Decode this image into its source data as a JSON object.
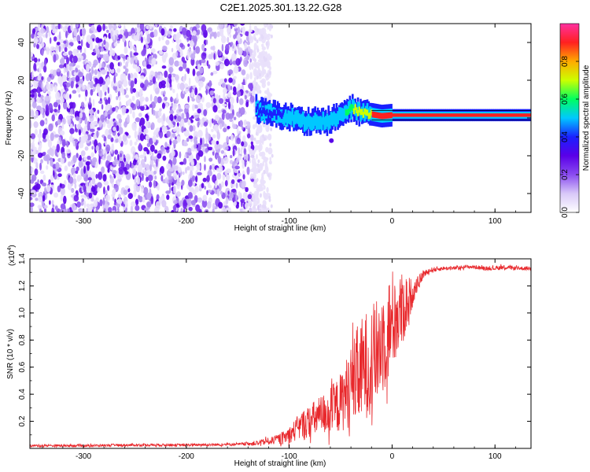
{
  "title": "C2E1.2025.301.13.22.G28",
  "chart_data": [
    {
      "type": "heatmap",
      "xlabel": "Height of straight line (km)",
      "ylabel": "Frequency (Hz)",
      "xlim": [
        -352,
        135
      ],
      "ylim": [
        -50,
        50
      ],
      "xticks": [
        -300,
        -200,
        -100,
        0,
        100
      ],
      "xtick_labels": [
        "-300",
        "-200",
        "-100",
        "0",
        "100"
      ],
      "yticks": [
        -40,
        -20,
        0,
        20,
        40
      ],
      "ytick_labels": [
        "-40",
        "-20",
        "0",
        "20",
        "40"
      ],
      "noise_region_x": [
        -352,
        -130
      ],
      "signal_ridge": {
        "x": [
          -132,
          -125,
          -115,
          -105,
          -95,
          -85,
          -75,
          -65,
          -55,
          -45,
          -38,
          -30,
          -20,
          -10,
          0,
          10,
          20,
          40,
          60,
          80,
          100,
          120,
          135
        ],
        "y_hz": [
          5,
          3,
          2,
          1,
          0,
          -2,
          -1,
          -2,
          0,
          3,
          5,
          3,
          2,
          1,
          1.5,
          1.5,
          1.5,
          1.5,
          1.5,
          1.5,
          1.5,
          1.5,
          1.5
        ],
        "amp": [
          0.45,
          0.5,
          0.45,
          0.5,
          0.5,
          0.55,
          0.5,
          0.5,
          0.55,
          0.6,
          0.7,
          0.8,
          0.85,
          0.85,
          0.9,
          0.9,
          0.95,
          0.95,
          0.95,
          0.95,
          0.95,
          0.95,
          0.95
        ]
      },
      "colorbar": {
        "label": "Normalized spectral amplitude",
        "range": [
          0,
          1
        ],
        "ticks": [
          0.0,
          0.2,
          0.4,
          0.6,
          0.8
        ],
        "tick_labels": [
          "0.0",
          "0.2",
          "0.4",
          "0.6",
          "0.8"
        ],
        "colors": [
          "#ffffff",
          "#d8c8f8",
          "#8a4cf0",
          "#5a00e8",
          "#1a20ff",
          "#00c8ff",
          "#00ff60",
          "#ccff00",
          "#ffaa00",
          "#ff2020",
          "#ff30a0"
        ]
      },
      "grid": false
    },
    {
      "type": "line",
      "xlabel": "Height of straight line (km)",
      "ylabel": "SNR (10 * v/v)",
      "y_multiplier_label": "(x10",
      "y_multiplier_exp": "4",
      "y_multiplier_close": ")",
      "xlim": [
        -352,
        135
      ],
      "ylim": [
        0,
        1.4
      ],
      "xticks": [
        -300,
        -200,
        -100,
        0,
        100
      ],
      "xtick_labels": [
        "-300",
        "-200",
        "-100",
        "0",
        "100"
      ],
      "yticks": [
        0.2,
        0.4,
        0.6,
        0.8,
        1.0,
        1.2,
        1.4
      ],
      "ytick_labels": [
        "0.2",
        "0.4",
        "0.6",
        "0.8",
        "1.0",
        "1.2",
        "1.4"
      ],
      "series": [
        {
          "color": "#e8282c",
          "x": [
            -352,
            -300,
            -250,
            -200,
            -150,
            -130,
            -115,
            -105,
            -100,
            -95,
            -90,
            -85,
            -80,
            -75,
            -70,
            -65,
            -60,
            -55,
            -50,
            -45,
            -40,
            -35,
            -30,
            -25,
            -20,
            -15,
            -10,
            -5,
            0,
            5,
            10,
            15,
            20,
            25,
            30,
            35,
            40,
            50,
            60,
            70,
            80,
            90,
            100,
            110,
            120,
            135
          ],
          "mean": [
            0.02,
            0.02,
            0.025,
            0.025,
            0.03,
            0.04,
            0.06,
            0.08,
            0.1,
            0.13,
            0.16,
            0.18,
            0.2,
            0.22,
            0.24,
            0.26,
            0.28,
            0.3,
            0.34,
            0.4,
            0.46,
            0.52,
            0.56,
            0.62,
            0.66,
            0.7,
            0.8,
            0.85,
            0.95,
            0.98,
            1.02,
            1.08,
            1.15,
            1.22,
            1.28,
            1.31,
            1.32,
            1.33,
            1.33,
            1.34,
            1.34,
            1.33,
            1.33,
            1.34,
            1.33,
            1.33
          ],
          "spread": [
            0.01,
            0.01,
            0.01,
            0.01,
            0.01,
            0.02,
            0.03,
            0.05,
            0.06,
            0.08,
            0.1,
            0.12,
            0.12,
            0.14,
            0.15,
            0.16,
            0.18,
            0.2,
            0.22,
            0.26,
            0.3,
            0.36,
            0.4,
            0.4,
            0.4,
            0.4,
            0.42,
            0.4,
            0.38,
            0.34,
            0.28,
            0.2,
            0.1,
            0.05,
            0.03,
            0.02,
            0.02,
            0.015,
            0.015,
            0.015,
            0.015,
            0.015,
            0.015,
            0.02,
            0.015,
            0.015
          ]
        }
      ],
      "grid": false
    }
  ]
}
